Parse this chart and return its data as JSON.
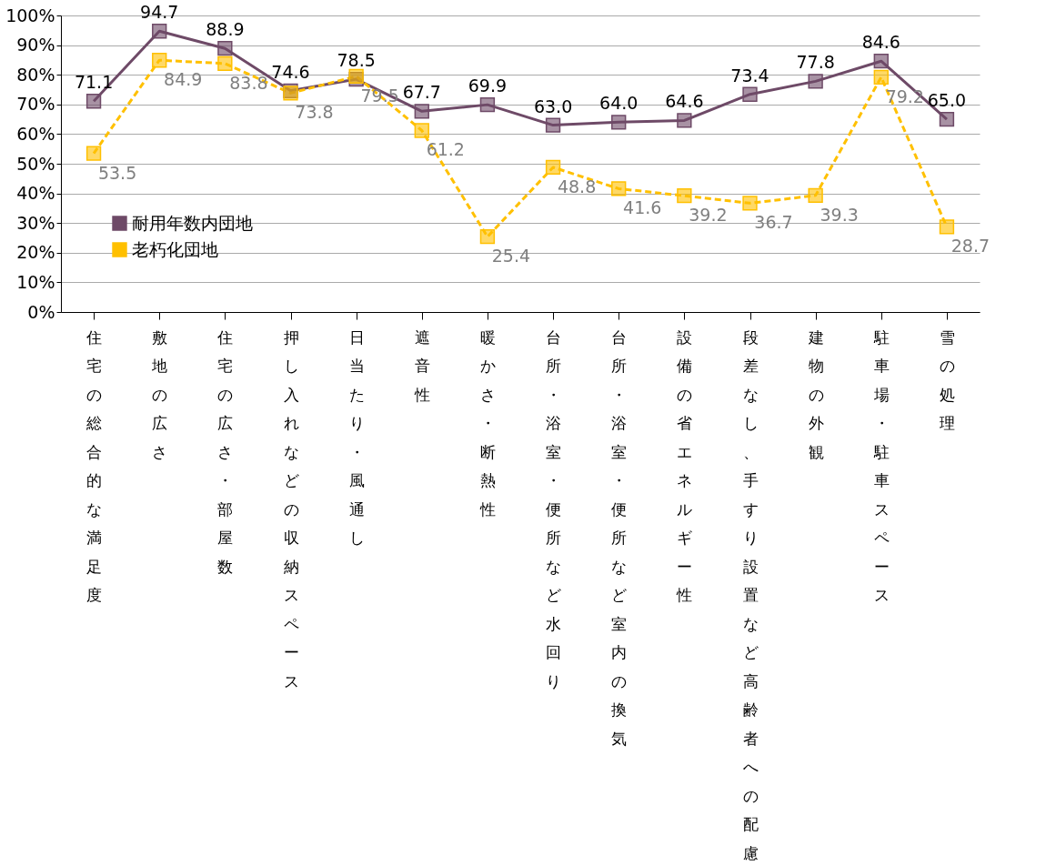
{
  "chart_data": {
    "type": "line",
    "categories": [
      "住宅の総合的な満足度",
      "敷地の広さ",
      "住宅の広さ・部屋数",
      "押し入れなどの収納スペース",
      "日当たり・風通し",
      "遮音性",
      "暖かさ・断熱性",
      "台所・浴室・便所など水回り",
      "台所・浴室・便所など室内の換気",
      "設備の省エネルギー性",
      "段差なし、手すり設置など高齢者への配慮",
      "建物の外観",
      "駐車場・駐車スペース",
      "雪の処理"
    ],
    "series": [
      {
        "name": "耐用年数内団地",
        "color": "#6e4a67",
        "line_style": "solid",
        "values": [
          71.1,
          94.7,
          88.9,
          74.6,
          78.5,
          67.7,
          69.9,
          63.0,
          64.0,
          64.6,
          73.4,
          77.8,
          84.6,
          65.0
        ],
        "value_labels": [
          "71.1",
          "94.7",
          "88.9",
          "74.6",
          "78.5",
          "67.7",
          "69.9",
          "63.0",
          "64.0",
          "64.6",
          "73.4",
          "77.8",
          "84.6",
          "65.0"
        ]
      },
      {
        "name": "老朽化団地",
        "color": "#ffc000",
        "line_style": "dashed",
        "values": [
          53.5,
          84.9,
          83.8,
          73.8,
          79.5,
          61.2,
          25.4,
          48.8,
          41.6,
          39.2,
          36.7,
          39.3,
          79.2,
          28.7
        ],
        "value_labels": [
          "53.5",
          "84.9",
          "83.8",
          "73.8",
          "79.5",
          "61.2",
          "25.4",
          "48.8",
          "41.6",
          "39.2",
          "36.7",
          "39.3",
          "79.2",
          "28.7"
        ]
      }
    ],
    "ylim": [
      0,
      100
    ],
    "yticks": [
      {
        "value": 0,
        "label": "0%"
      },
      {
        "value": 10,
        "label": "10%"
      },
      {
        "value": 20,
        "label": "20%"
      },
      {
        "value": 30,
        "label": "30%"
      },
      {
        "value": 40,
        "label": "40%"
      },
      {
        "value": 50,
        "label": "50%"
      },
      {
        "value": 60,
        "label": "60%"
      },
      {
        "value": 70,
        "label": "70%"
      },
      {
        "value": 80,
        "label": "80%"
      },
      {
        "value": 90,
        "label": "90%"
      },
      {
        "value": 100,
        "label": "100%"
      }
    ],
    "grid": "y",
    "legend": "bottom left",
    "marker": "square",
    "data_labels": true
  }
}
